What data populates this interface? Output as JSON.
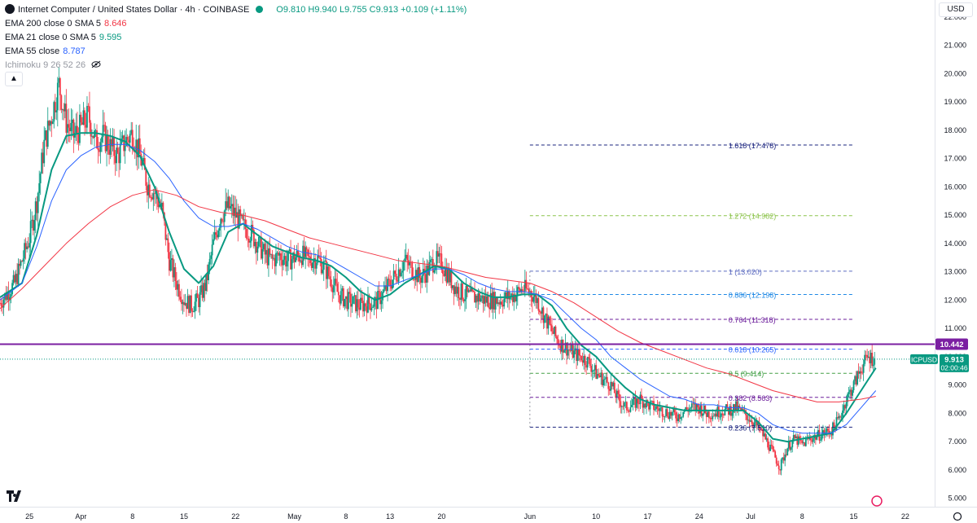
{
  "header": {
    "title": "Internet Computer / United States Dollar · 4h · COINBASE",
    "ohlc": "O9.810 H9.940 L9.755 C9.913 +0.109 (+1.11%)",
    "collapse_icon": "chevron-up-icon"
  },
  "indicators": [
    {
      "label": "EMA 200 close 0 SMA 5",
      "value": "8.646",
      "color": "#f23645"
    },
    {
      "label": "EMA 21 close 0 SMA 5",
      "value": "9.595",
      "color": "#089981"
    },
    {
      "label": "EMA 55 close",
      "value": "8.787",
      "color": "#2962ff"
    },
    {
      "label": "Ichimoku 9 26 52 26",
      "value": "",
      "color": "#9598a1"
    }
  ],
  "currency": "USD",
  "price_badges": {
    "resistance": "10.442",
    "symbol": "ICPUSD",
    "last": "9.913",
    "countdown": "02:00:46"
  },
  "colors": {
    "up": "#089981",
    "down": "#f23645",
    "ema200": "#f23645",
    "ema21": "#089981",
    "ema55": "#2962ff",
    "resistance": "#7b1fa2"
  },
  "chart_data": {
    "type": "candlestick",
    "title": "Internet Computer / United States Dollar · 4h · COINBASE",
    "ylim": [
      4.7,
      22.6
    ],
    "y_ticks": [
      5,
      6,
      7,
      8,
      9,
      10,
      11,
      12,
      13,
      14,
      15,
      16,
      17,
      18,
      19,
      20,
      21,
      22
    ],
    "x_ticks": [
      "25",
      "Apr",
      "8",
      "15",
      "22",
      "May",
      "8",
      "13",
      "20",
      "Jun",
      "10",
      "17",
      "24",
      "Jul",
      "8",
      "15",
      "22"
    ],
    "x_tick_days": [
      -6,
      1,
      8,
      15,
      22,
      30,
      37,
      43,
      50,
      62,
      71,
      78,
      85,
      92,
      99,
      106,
      113
    ],
    "x_range_days": [
      -10,
      117
    ],
    "grid": false,
    "price_path": [
      [
        -10,
        11.9
      ],
      [
        -8,
        12.6
      ],
      [
        -6,
        14.2
      ],
      [
        -5,
        15.5
      ],
      [
        -4,
        17.5
      ],
      [
        -3,
        18.5
      ],
      [
        -2,
        19.6
      ],
      [
        -1,
        18.3
      ],
      [
        0,
        17.8
      ],
      [
        1,
        18.1
      ],
      [
        2,
        18.5
      ],
      [
        3,
        17.6
      ],
      [
        4,
        17.8
      ],
      [
        5,
        17.4
      ],
      [
        6,
        17.1
      ],
      [
        7,
        17.6
      ],
      [
        8,
        17.9
      ],
      [
        9,
        17.1
      ],
      [
        10,
        16.1
      ],
      [
        11,
        15.8
      ],
      [
        12,
        15.2
      ],
      [
        13,
        13.4
      ],
      [
        14,
        12.6
      ],
      [
        15,
        12.0
      ],
      [
        16,
        11.8
      ],
      [
        17,
        12.0
      ],
      [
        18,
        12.6
      ],
      [
        19,
        14.0
      ],
      [
        20,
        15.0
      ],
      [
        21,
        15.3
      ],
      [
        22,
        15.0
      ],
      [
        23,
        14.6
      ],
      [
        24,
        14.4
      ],
      [
        25,
        14.0
      ],
      [
        26,
        13.6
      ],
      [
        27,
        13.4
      ],
      [
        28,
        13.6
      ],
      [
        29,
        13.4
      ],
      [
        30,
        13.5
      ],
      [
        31,
        13.6
      ],
      [
        32,
        13.4
      ],
      [
        33,
        13.5
      ],
      [
        34,
        13.2
      ],
      [
        35,
        12.7
      ],
      [
        36,
        12.2
      ],
      [
        37,
        12.0
      ],
      [
        38,
        11.9
      ],
      [
        39,
        11.8
      ],
      [
        40,
        11.9
      ],
      [
        41,
        11.9
      ],
      [
        42,
        12.2
      ],
      [
        43,
        12.6
      ],
      [
        44,
        13.0
      ],
      [
        45,
        13.4
      ],
      [
        46,
        13.1
      ],
      [
        47,
        12.8
      ],
      [
        48,
        13.0
      ],
      [
        49,
        13.4
      ],
      [
        50,
        13.3
      ],
      [
        51,
        12.8
      ],
      [
        52,
        12.4
      ],
      [
        53,
        12.2
      ],
      [
        54,
        12.1
      ],
      [
        55,
        12.1
      ],
      [
        56,
        12.0
      ],
      [
        57,
        12.0
      ],
      [
        58,
        12.0
      ],
      [
        59,
        12.1
      ],
      [
        60,
        12.2
      ],
      [
        61,
        12.4
      ],
      [
        62,
        12.3
      ],
      [
        63,
        12.0
      ],
      [
        64,
        11.4
      ],
      [
        65,
        10.9
      ],
      [
        66,
        10.5
      ],
      [
        67,
        10.3
      ],
      [
        68,
        10.1
      ],
      [
        69,
        10.0
      ],
      [
        70,
        9.8
      ],
      [
        71,
        9.4
      ],
      [
        72,
        9.2
      ],
      [
        73,
        9.0
      ],
      [
        74,
        8.5
      ],
      [
        75,
        8.2
      ],
      [
        76,
        8.3
      ],
      [
        77,
        8.5
      ],
      [
        78,
        8.3
      ],
      [
        79,
        8.2
      ],
      [
        80,
        8.1
      ],
      [
        81,
        8.0
      ],
      [
        82,
        7.9
      ],
      [
        83,
        8.1
      ],
      [
        84,
        8.2
      ],
      [
        85,
        8.2
      ],
      [
        86,
        8.0
      ],
      [
        87,
        8.0
      ],
      [
        88,
        8.1
      ],
      [
        89,
        8.1
      ],
      [
        90,
        8.2
      ],
      [
        91,
        8.0
      ],
      [
        92,
        7.8
      ],
      [
        93,
        7.5
      ],
      [
        94,
        7.1
      ],
      [
        95,
        6.6
      ],
      [
        96,
        6.1
      ],
      [
        97,
        6.8
      ],
      [
        98,
        7.1
      ],
      [
        99,
        6.9
      ],
      [
        100,
        7.1
      ],
      [
        101,
        7.2
      ],
      [
        102,
        7.3
      ],
      [
        103,
        7.4
      ],
      [
        104,
        7.8
      ],
      [
        105,
        8.5
      ],
      [
        106,
        9.0
      ],
      [
        107,
        9.6
      ],
      [
        108,
        10.0
      ],
      [
        109,
        9.9
      ]
    ],
    "series": [
      {
        "name": "EMA 21",
        "color": "#089981",
        "points": [
          [
            -10,
            12.1
          ],
          [
            -7,
            12.6
          ],
          [
            -5,
            14.3
          ],
          [
            -3,
            16.6
          ],
          [
            -1,
            17.8
          ],
          [
            1,
            17.9
          ],
          [
            3,
            17.9
          ],
          [
            5,
            17.8
          ],
          [
            7,
            17.6
          ],
          [
            9,
            17.1
          ],
          [
            11,
            16.0
          ],
          [
            13,
            14.4
          ],
          [
            15,
            13.1
          ],
          [
            17,
            12.6
          ],
          [
            19,
            13.2
          ],
          [
            21,
            14.4
          ],
          [
            23,
            14.7
          ],
          [
            25,
            14.3
          ],
          [
            27,
            13.9
          ],
          [
            29,
            13.7
          ],
          [
            31,
            13.5
          ],
          [
            33,
            13.4
          ],
          [
            35,
            13.2
          ],
          [
            37,
            12.8
          ],
          [
            39,
            12.3
          ],
          [
            41,
            12.0
          ],
          [
            43,
            12.2
          ],
          [
            45,
            12.6
          ],
          [
            47,
            12.9
          ],
          [
            49,
            13.2
          ],
          [
            51,
            13.1
          ],
          [
            53,
            12.6
          ],
          [
            55,
            12.3
          ],
          [
            57,
            12.1
          ],
          [
            59,
            12.1
          ],
          [
            61,
            12.2
          ],
          [
            63,
            12.2
          ],
          [
            65,
            11.8
          ],
          [
            67,
            11.0
          ],
          [
            69,
            10.4
          ],
          [
            71,
            10.0
          ],
          [
            73,
            9.4
          ],
          [
            75,
            8.9
          ],
          [
            77,
            8.5
          ],
          [
            79,
            8.3
          ],
          [
            81,
            8.2
          ],
          [
            83,
            8.1
          ],
          [
            85,
            8.1
          ],
          [
            87,
            8.1
          ],
          [
            89,
            8.1
          ],
          [
            91,
            8.1
          ],
          [
            93,
            7.7
          ],
          [
            95,
            7.1
          ],
          [
            97,
            7.0
          ],
          [
            99,
            7.1
          ],
          [
            101,
            7.2
          ],
          [
            103,
            7.3
          ],
          [
            105,
            8.0
          ],
          [
            107,
            8.8
          ],
          [
            109,
            9.6
          ]
        ]
      },
      {
        "name": "EMA 55",
        "color": "#2962ff",
        "points": [
          [
            -10,
            12.0
          ],
          [
            -7,
            12.6
          ],
          [
            -5,
            13.9
          ],
          [
            -3,
            15.5
          ],
          [
            -1,
            16.6
          ],
          [
            1,
            17.1
          ],
          [
            3,
            17.4
          ],
          [
            5,
            17.5
          ],
          [
            7,
            17.5
          ],
          [
            9,
            17.3
          ],
          [
            11,
            16.9
          ],
          [
            13,
            16.3
          ],
          [
            15,
            15.5
          ],
          [
            17,
            14.9
          ],
          [
            19,
            14.6
          ],
          [
            21,
            14.6
          ],
          [
            23,
            14.7
          ],
          [
            25,
            14.5
          ],
          [
            27,
            14.2
          ],
          [
            29,
            13.9
          ],
          [
            31,
            13.7
          ],
          [
            33,
            13.6
          ],
          [
            35,
            13.4
          ],
          [
            37,
            13.1
          ],
          [
            39,
            12.8
          ],
          [
            41,
            12.5
          ],
          [
            43,
            12.5
          ],
          [
            45,
            12.7
          ],
          [
            47,
            12.9
          ],
          [
            49,
            13.1
          ],
          [
            51,
            13.1
          ],
          [
            53,
            12.9
          ],
          [
            55,
            12.6
          ],
          [
            57,
            12.4
          ],
          [
            59,
            12.3
          ],
          [
            61,
            12.3
          ],
          [
            63,
            12.2
          ],
          [
            65,
            12.0
          ],
          [
            67,
            11.5
          ],
          [
            69,
            11.0
          ],
          [
            71,
            10.6
          ],
          [
            73,
            10.0
          ],
          [
            75,
            9.6
          ],
          [
            77,
            9.2
          ],
          [
            79,
            8.9
          ],
          [
            81,
            8.6
          ],
          [
            83,
            8.5
          ],
          [
            85,
            8.3
          ],
          [
            87,
            8.3
          ],
          [
            89,
            8.2
          ],
          [
            91,
            8.2
          ],
          [
            93,
            8.0
          ],
          [
            95,
            7.6
          ],
          [
            97,
            7.4
          ],
          [
            99,
            7.3
          ],
          [
            101,
            7.3
          ],
          [
            103,
            7.3
          ],
          [
            105,
            7.6
          ],
          [
            107,
            8.2
          ],
          [
            109,
            8.8
          ]
        ]
      },
      {
        "name": "EMA 200",
        "color": "#f23645",
        "points": [
          [
            -10,
            11.7
          ],
          [
            -7,
            12.4
          ],
          [
            -4,
            13.2
          ],
          [
            -1,
            14.0
          ],
          [
            2,
            14.7
          ],
          [
            5,
            15.3
          ],
          [
            8,
            15.7
          ],
          [
            11,
            15.9
          ],
          [
            14,
            15.7
          ],
          [
            17,
            15.3
          ],
          [
            20,
            15.1
          ],
          [
            23,
            15.0
          ],
          [
            26,
            14.8
          ],
          [
            29,
            14.5
          ],
          [
            32,
            14.2
          ],
          [
            35,
            14.0
          ],
          [
            38,
            13.8
          ],
          [
            41,
            13.6
          ],
          [
            44,
            13.4
          ],
          [
            47,
            13.3
          ],
          [
            50,
            13.2
          ],
          [
            53,
            13.0
          ],
          [
            56,
            12.8
          ],
          [
            59,
            12.7
          ],
          [
            62,
            12.6
          ],
          [
            65,
            12.3
          ],
          [
            68,
            11.9
          ],
          [
            71,
            11.4
          ],
          [
            74,
            10.9
          ],
          [
            77,
            10.5
          ],
          [
            80,
            10.2
          ],
          [
            83,
            9.9
          ],
          [
            86,
            9.6
          ],
          [
            89,
            9.4
          ],
          [
            92,
            9.1
          ],
          [
            95,
            8.8
          ],
          [
            98,
            8.6
          ],
          [
            101,
            8.4
          ],
          [
            104,
            8.4
          ],
          [
            107,
            8.5
          ],
          [
            109,
            8.6
          ]
        ]
      }
    ],
    "fibonacci": [
      {
        "label": "1.618 (17.478)",
        "value": 17.478,
        "color": "#1a237e"
      },
      {
        "label": "1.272 (14.982)",
        "value": 14.982,
        "color": "#8bc34a"
      },
      {
        "label": "1 (13.020)",
        "value": 13.02,
        "color": "#5c6bc0"
      },
      {
        "label": "0.886 (12.198)",
        "value": 12.198,
        "color": "#1e88e5"
      },
      {
        "label": "0.764 (11.318)",
        "value": 11.318,
        "color": "#6a1b9a"
      },
      {
        "label": "0.618 (10.265)",
        "value": 10.265,
        "color": "#2962ff"
      },
      {
        "label": "0.5 (9.414)",
        "value": 9.414,
        "color": "#43a047"
      },
      {
        "label": "0.382 (8.563)",
        "value": 8.563,
        "color": "#6a1b9a"
      },
      {
        "label": "0.236 (7.510)",
        "value": 7.51,
        "color": "#1a237e"
      }
    ],
    "fib_start_day": 62,
    "fib_end_day": 106,
    "resistance_level": 10.442,
    "last_price": 9.913
  }
}
